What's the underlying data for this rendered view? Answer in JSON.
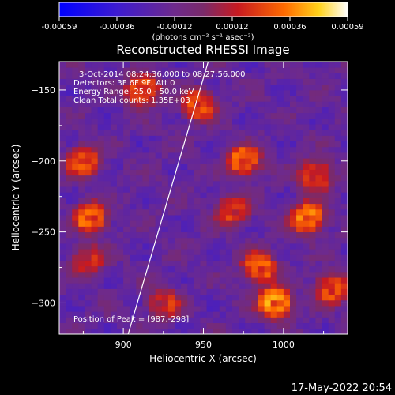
{
  "chart_data": {
    "type": "heatmap",
    "title": "Reconstructed RHESSI Image",
    "xlabel": "Heliocentric X (arcsec)",
    "ylabel": "Heliocentric Y (arcsec)",
    "xlim": [
      860,
      1040
    ],
    "ylim": [
      -322,
      -130
    ],
    "x_ticks": [
      900,
      950,
      1000
    ],
    "y_ticks": [
      -150,
      -200,
      -250,
      -300
    ],
    "colorbar": {
      "ticks": [
        "-0.00059",
        "-0.00036",
        "-0.00012",
        "0.00012",
        "0.00036",
        "0.00059"
      ],
      "range": [
        -0.00059,
        0.00059
      ],
      "unit_label": "(photons cm⁻² s⁻¹ asec⁻²)",
      "colormap": "blue-purple-red-yellow-white"
    },
    "annotations": {
      "time_range": "3-Oct-2014 08:24:36.000 to 08:27:56.000",
      "detectors": "Detectors: 3F 6F 9F, Att 0",
      "energy_range": "Energy Range: 25.0 - 50.0 keV",
      "clean_counts": "Clean     Total counts: 1.35E+03",
      "peak": "Position of Peak = [987,-298]"
    },
    "peak_position": [
      987,
      -298
    ],
    "limb_line": [
      [
        903,
        -322
      ],
      [
        953,
        -130
      ]
    ],
    "hot_spots": [
      {
        "x": 912,
        "y": -150,
        "value": 0.00045
      },
      {
        "x": 947,
        "y": -160,
        "value": 0.0004
      },
      {
        "x": 975,
        "y": -200,
        "value": 0.00045
      },
      {
        "x": 968,
        "y": -235,
        "value": 0.00035
      },
      {
        "x": 985,
        "y": -275,
        "value": 0.00045
      },
      {
        "x": 1015,
        "y": -240,
        "value": 0.0005
      },
      {
        "x": 1020,
        "y": -210,
        "value": 0.0004
      },
      {
        "x": 995,
        "y": -300,
        "value": 0.00059
      },
      {
        "x": 880,
        "y": -240,
        "value": 0.00045
      },
      {
        "x": 875,
        "y": -200,
        "value": 0.0004
      },
      {
        "x": 878,
        "y": -270,
        "value": 0.0003
      },
      {
        "x": 925,
        "y": -300,
        "value": 0.0003
      },
      {
        "x": 1030,
        "y": -290,
        "value": 0.0004
      }
    ]
  },
  "footer": {
    "timestamp": "17-May-2022 20:54"
  }
}
